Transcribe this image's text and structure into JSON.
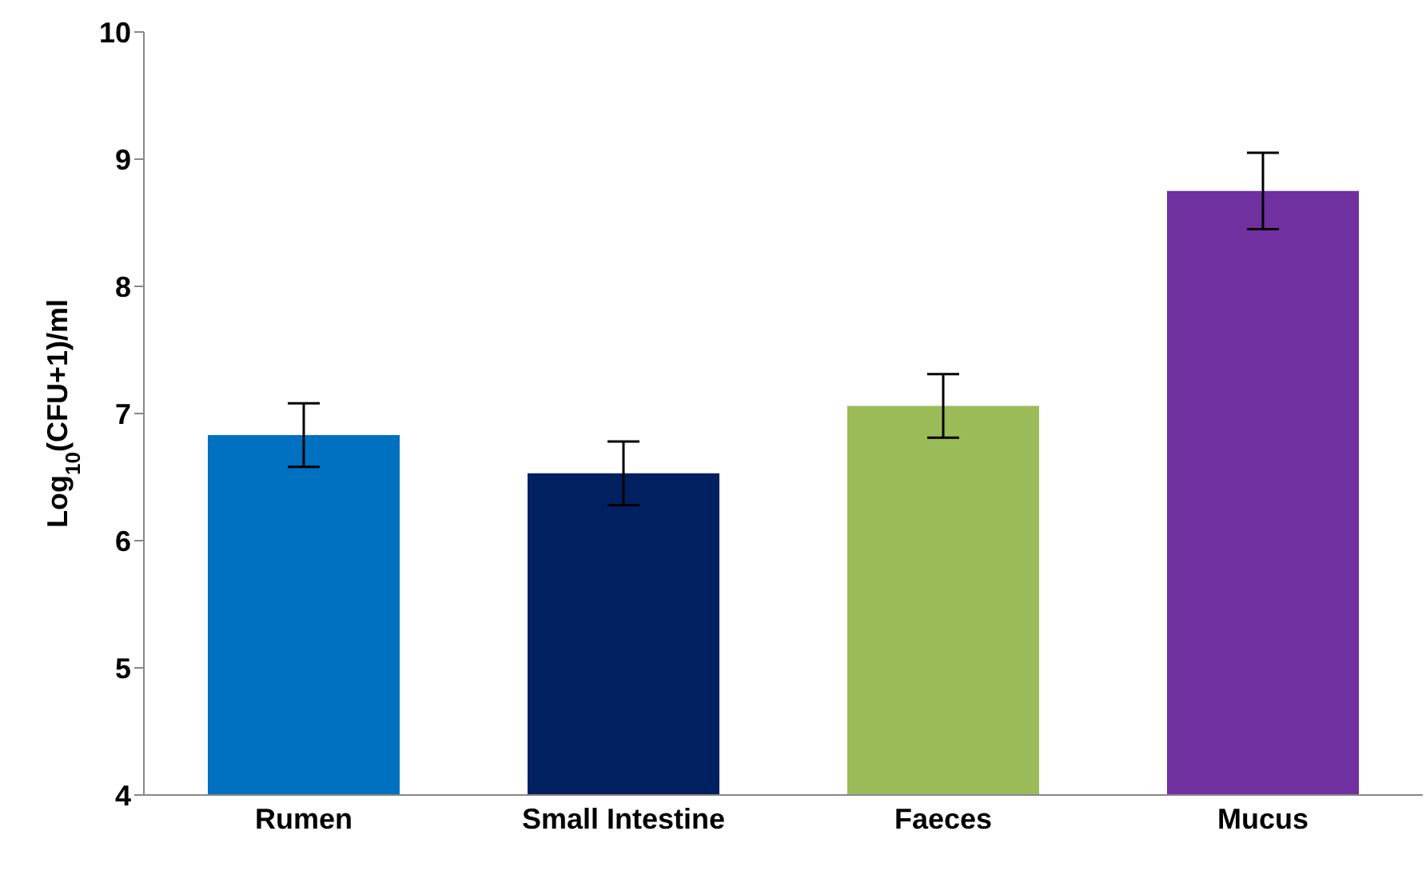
{
  "chart_data": {
    "type": "bar",
    "ylabel": "Log$_{10}$(CFU+1)/ml",
    "categories": [
      "Rumen",
      "Small Intestine",
      "Faeces",
      "Mucus"
    ],
    "values": [
      6.83,
      6.53,
      7.06,
      8.75
    ],
    "colors": [
      "#0070c0",
      "#002060",
      "#9bbb59",
      "#7030a0"
    ],
    "errors": [
      0.25,
      0.25,
      0.25,
      0.3
    ],
    "ylim": [
      4,
      10
    ],
    "yticks": [
      4,
      5,
      6,
      7,
      8,
      9,
      10
    ],
    "grid": false,
    "legend": false
  }
}
